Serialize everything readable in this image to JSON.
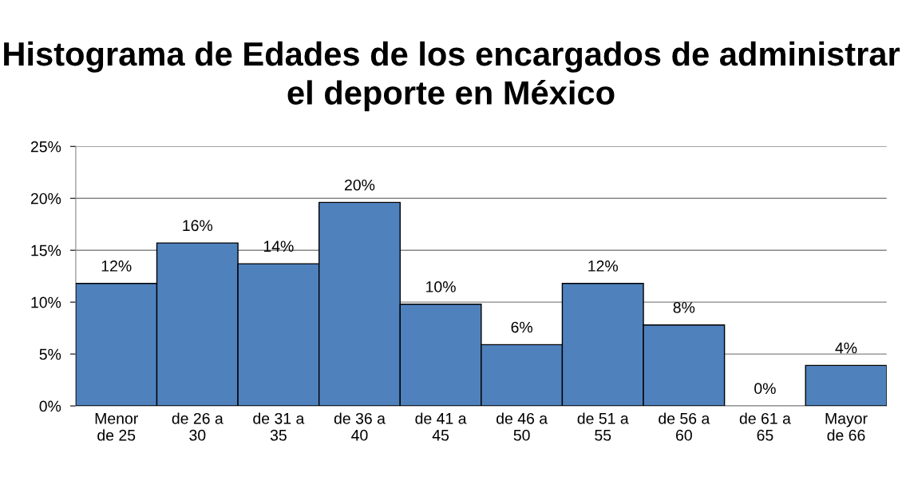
{
  "chart_data": {
    "type": "bar",
    "title": "Histograma de Edades de los encargados de administrar el deporte en México",
    "categories": [
      "Menor\nde 25",
      "de 26 a\n30",
      "de 31 a\n35",
      "de 36 a\n40",
      "de 41 a\n45",
      "de 46 a\n50",
      "de 51 a\n55",
      "de 56 a\n60",
      "de 61 a\n65",
      "Mayor\nde 66"
    ],
    "values": [
      11.8,
      15.7,
      13.7,
      19.6,
      9.8,
      5.9,
      11.8,
      7.8,
      0,
      3.9
    ],
    "value_labels": [
      "12%",
      "16%",
      "14%",
      "20%",
      "10%",
      "6%",
      "12%",
      "8%",
      "0%",
      "4%"
    ],
    "color": "#4f81bd",
    "ylim": [
      0,
      25
    ],
    "yticks": [
      {
        "value": 0,
        "label": "0%"
      },
      {
        "value": 5,
        "label": "5%"
      },
      {
        "value": 10,
        "label": "10%"
      },
      {
        "value": 15,
        "label": "15%"
      },
      {
        "value": 20,
        "label": "20%"
      },
      {
        "value": 25,
        "label": "25%"
      }
    ],
    "grid": "y",
    "legend": false
  }
}
